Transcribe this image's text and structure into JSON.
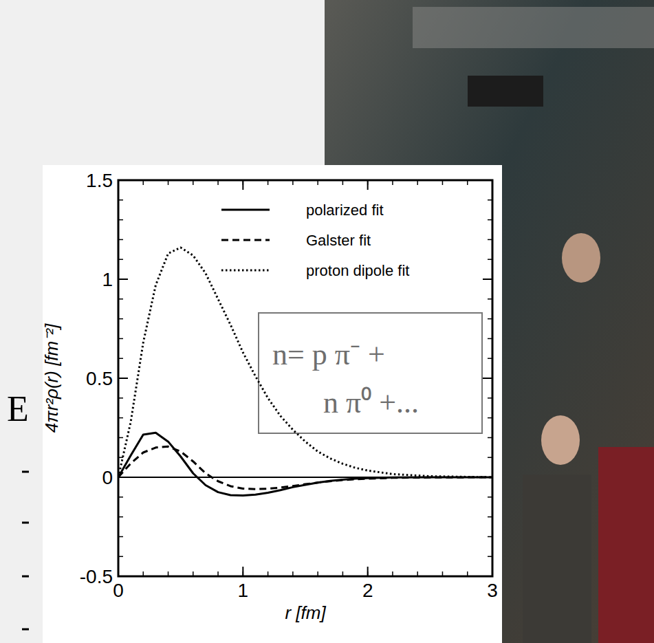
{
  "chart_data": {
    "type": "line",
    "x_label": "r [fm]",
    "y_label": "4πr²ρ(r) [fm⁻²]",
    "x": [
      0,
      0.1,
      0.2,
      0.3,
      0.4,
      0.5,
      0.6,
      0.7,
      0.8,
      0.9,
      1.0,
      1.1,
      1.2,
      1.3,
      1.4,
      1.5,
      1.6,
      1.7,
      1.8,
      1.9,
      2.0,
      2.2,
      2.5,
      3.0
    ],
    "series": [
      {
        "name": "polarized fit",
        "color": "#000000",
        "line_style": "solid",
        "values": [
          0,
          0.11,
          0.215,
          0.225,
          0.18,
          0.105,
          0.02,
          -0.04,
          -0.075,
          -0.09,
          -0.092,
          -0.088,
          -0.078,
          -0.065,
          -0.05,
          -0.038,
          -0.027,
          -0.018,
          -0.012,
          -0.007,
          -0.004,
          -0.001,
          0,
          0
        ]
      },
      {
        "name": "Galster fit",
        "color": "#000000",
        "line_style": "dashed",
        "values": [
          0,
          0.07,
          0.125,
          0.15,
          0.155,
          0.13,
          0.08,
          0.02,
          -0.02,
          -0.045,
          -0.057,
          -0.06,
          -0.058,
          -0.052,
          -0.044,
          -0.035,
          -0.027,
          -0.02,
          -0.014,
          -0.01,
          -0.007,
          -0.003,
          -0.001,
          0
        ]
      },
      {
        "name": "proton dipole fit",
        "color": "#000000",
        "line_style": "dotted",
        "values": [
          0,
          0.28,
          0.68,
          0.97,
          1.13,
          1.16,
          1.12,
          1.03,
          0.9,
          0.77,
          0.63,
          0.51,
          0.4,
          0.31,
          0.24,
          0.18,
          0.13,
          0.095,
          0.068,
          0.048,
          0.034,
          0.016,
          0.005,
          0
        ]
      }
    ],
    "xlim": [
      0,
      3
    ],
    "ylim": [
      -0.5,
      1.5
    ],
    "xticks": [
      0,
      1,
      2,
      3
    ],
    "yticks": [
      -0.5,
      0,
      0.5,
      1,
      1.5
    ],
    "legend": "upper right",
    "grid": false,
    "annotations": [
      "n= p π⁻ +",
      "n π⁰ +...",
      "E"
    ]
  }
}
